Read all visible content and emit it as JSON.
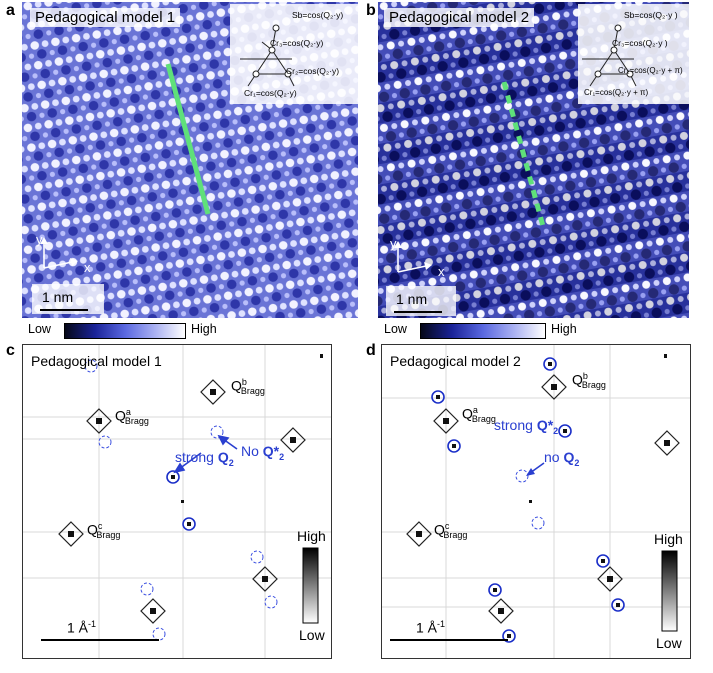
{
  "panels": {
    "a": {
      "letter": "a",
      "title": "Pedagogical model 1",
      "inset": {
        "sb": "Sb=cos(Q₂·y)",
        "cr3": "Cr₃=cos(Q₂·y)",
        "cr2": "Cr₂=cos(Q₂·y)",
        "cr1": "Cr₁=cos(Q₂·y)"
      },
      "axis_y": "y",
      "axis_x": "x",
      "scale": "1 nm"
    },
    "b": {
      "letter": "b",
      "title": "Pedagogical model 2",
      "inset": {
        "sb": "Sb=cos(Q₂·y )",
        "cr3": "Cr₃=cos(Q₂·y )",
        "cr2": "Cr₂=cos(Q₂·y + π)",
        "cr1": "Cr₁=cos(Q₂·y + π)"
      },
      "axis_y": "y",
      "axis_x": "x",
      "scale": "1 nm"
    },
    "c": {
      "letter": "c",
      "title": "Pedagogical model 1",
      "bragg_b_sup": "b",
      "bragg_a_sup": "a",
      "bragg_c_sup": "c",
      "bragg_sub": "Bragg",
      "q": "Q",
      "ann_no": "No",
      "ann_qstar": "Q*",
      "ann_qstar_sub": "2",
      "ann_strong": "strong",
      "ann_q2": "Q",
      "ann_q2_sub": "2",
      "scale": "1 Å",
      "scale_sup": "-1",
      "cb_high": "High",
      "cb_low": "Low"
    },
    "d": {
      "letter": "d",
      "title": "Pedagogical model 2",
      "bragg_b_sup": "b",
      "bragg_a_sup": "a",
      "bragg_c_sup": "c",
      "bragg_sub": "Bragg",
      "q": "Q",
      "ann_strong": "strong",
      "ann_qstar": "Q*",
      "ann_qstar_sub": "2",
      "ann_no": "no",
      "ann_q2": "Q",
      "ann_q2_sub": "2",
      "scale": "1 Å",
      "scale_sup": "-1",
      "cb_high": "High",
      "cb_low": "Low"
    }
  },
  "colorbar": {
    "low": "Low",
    "high": "High"
  },
  "colors": {
    "line_solid": "#5fe07a",
    "blue_ann": "#2a3fd0",
    "stm_dark": "#1a1f8a",
    "stm_light": "#f4f4ff"
  }
}
